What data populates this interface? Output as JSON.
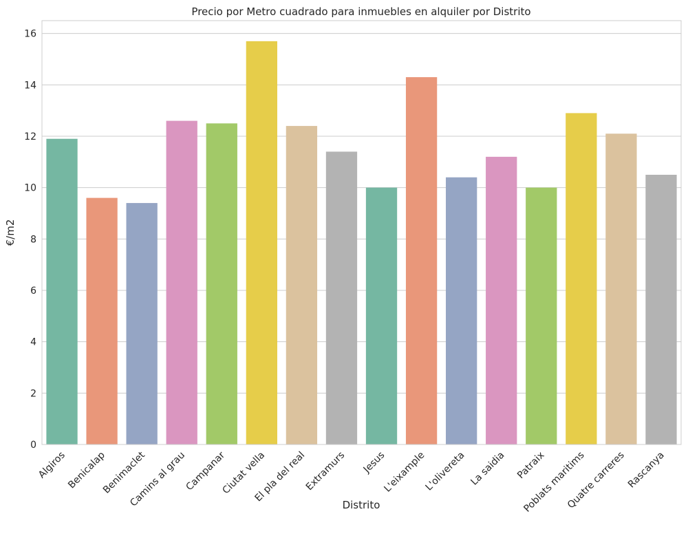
{
  "chart_data": {
    "type": "bar",
    "title": "Precio por Metro cuadrado para inmuebles en alquiler por Distrito",
    "xlabel": "Distrito",
    "ylabel": "€/m2",
    "ylim": [
      0,
      16.5
    ],
    "yticks": [
      0,
      2,
      4,
      6,
      8,
      10,
      12,
      14,
      16
    ],
    "grid": "horizontal",
    "categories": [
      "Algiros",
      "Benicalap",
      "Benimaclet",
      "Camins al grau",
      "Campanar",
      "Ciutat vella",
      "El pla del real",
      "Extramurs",
      "Jesus",
      "L'eixample",
      "L'olivereta",
      "La saidia",
      "Patraix",
      "Poblats maritims",
      "Quatre carreres",
      "Rascanya"
    ],
    "values": [
      11.9,
      9.6,
      9.4,
      12.6,
      12.5,
      15.7,
      12.4,
      11.4,
      10.0,
      14.3,
      10.4,
      11.2,
      10.0,
      12.9,
      12.1,
      10.5
    ],
    "colors": [
      "#75b7a2",
      "#e9977a",
      "#95a5c4",
      "#da96c0",
      "#a2c968",
      "#e6cd4a",
      "#dbc29e",
      "#b3b3b3",
      "#75b7a2",
      "#e9977a",
      "#95a5c4",
      "#da96c0",
      "#a2c968",
      "#e6cd4a",
      "#dbc29e",
      "#b3b3b3"
    ]
  }
}
